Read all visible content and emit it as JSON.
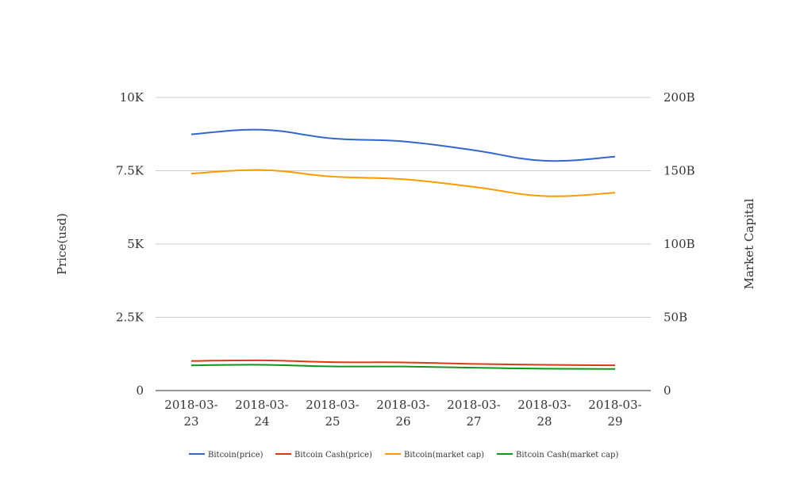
{
  "chart_data": {
    "type": "line",
    "x": [
      "2018-03-23",
      "2018-03-24",
      "2018-03-25",
      "2018-03-26",
      "2018-03-27",
      "2018-03-28",
      "2018-03-29"
    ],
    "x_tick_labels": [
      [
        "2018-03-",
        "23"
      ],
      [
        "2018-03-",
        "24"
      ],
      [
        "2018-03-",
        "25"
      ],
      [
        "2018-03-",
        "26"
      ],
      [
        "2018-03-",
        "27"
      ],
      [
        "2018-03-",
        "28"
      ],
      [
        "2018-03-",
        "29"
      ]
    ],
    "ylabel_left": "Price(usd)",
    "ylabel_right": "Market Capital",
    "ylim_left": [
      0,
      10000
    ],
    "ylim_right": [
      0,
      200000000000
    ],
    "left_ticks": [
      {
        "value": 0,
        "label": "0"
      },
      {
        "value": 2500,
        "label": "2.5K"
      },
      {
        "value": 5000,
        "label": "5K"
      },
      {
        "value": 7500,
        "label": "7.5K"
      },
      {
        "value": 10000,
        "label": "10K"
      }
    ],
    "right_ticks": [
      {
        "value": 0,
        "label": "0"
      },
      {
        "value": 50000000000,
        "label": "50B"
      },
      {
        "value": 100000000000,
        "label": "100B"
      },
      {
        "value": 150000000000,
        "label": "150B"
      },
      {
        "value": 200000000000,
        "label": "200B"
      }
    ],
    "grid": true,
    "legend_position": "bottom",
    "series": [
      {
        "name": "Bitcoin(price)",
        "axis": "left",
        "color": "#3366cc",
        "values": [
          8740,
          8900,
          8600,
          8500,
          8200,
          7840,
          7980
        ]
      },
      {
        "name": "Bitcoin Cash(price)",
        "axis": "left",
        "color": "#dc3912",
        "values": [
          1010,
          1030,
          970,
          960,
          910,
          880,
          860
        ]
      },
      {
        "name": "Bitcoin(market cap)",
        "axis": "right",
        "color": "#ff9900",
        "values": [
          148000000000,
          150500000000,
          146000000000,
          144200000000,
          139000000000,
          132700000000,
          135000000000
        ]
      },
      {
        "name": "Bitcoin Cash(market cap)",
        "axis": "right",
        "color": "#109618",
        "values": [
          17200000000,
          17600000000,
          16500000000,
          16400000000,
          15600000000,
          14900000000,
          14700000000
        ]
      }
    ]
  }
}
